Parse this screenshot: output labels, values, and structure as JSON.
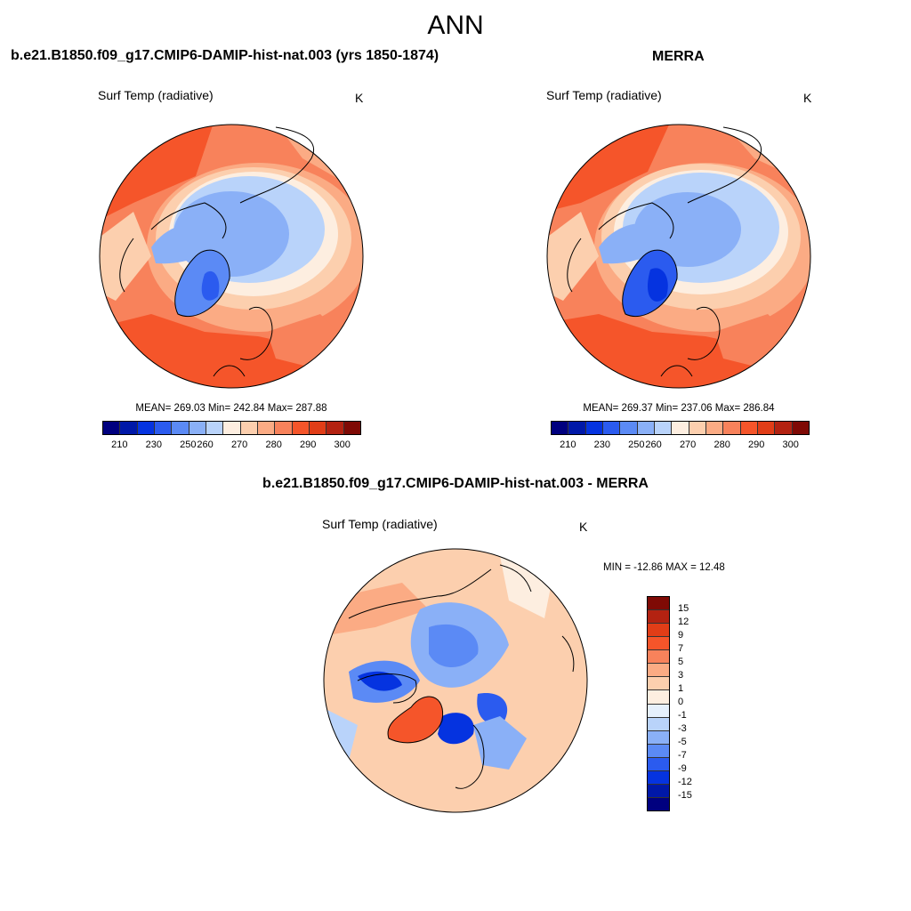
{
  "figure": {
    "title": "ANN"
  },
  "panels": [
    {
      "title": "b.e21.B1850.f09_g17.CMIP6-DAMIP-hist-nat.003 (yrs 1850-1874)",
      "variable": "Surf Temp (radiative)",
      "units": "K",
      "stats": "MEAN= 269.03  Min= 242.84  Max= 287.88"
    },
    {
      "title": "MERRA",
      "variable": "Surf Temp (radiative)",
      "units": "K",
      "stats": "MEAN= 269.37  Min= 237.06  Max= 286.84"
    },
    {
      "title": "b.e21.B1850.f09_g17.CMIP6-DAMIP-hist-nat.003 - MERRA",
      "variable": "Surf Temp (radiative)",
      "units": "K",
      "stats": "MIN = -12.86 MAX =  12.48"
    }
  ],
  "colorbar_abs": {
    "tick_labels": [
      "210",
      "230",
      "250",
      "260",
      "270",
      "280",
      "290",
      "300"
    ],
    "colors": [
      "#00007f",
      "#0018a8",
      "#0533e0",
      "#2b5bef",
      "#5b8af5",
      "#8ab0f7",
      "#b9d3fa",
      "#fdeee0",
      "#fccfae",
      "#fbab84",
      "#f8825b",
      "#f5552a",
      "#e13d17",
      "#b32211",
      "#7f0a05"
    ]
  },
  "colorbar_diff": {
    "tick_labels": [
      "15",
      "12",
      "9",
      "7",
      "5",
      "3",
      "1",
      "0",
      "-1",
      "-3",
      "-5",
      "-7",
      "-9",
      "-12",
      "-15"
    ],
    "colors": [
      "#7f0a05",
      "#b32211",
      "#e13d17",
      "#f5552a",
      "#f8825b",
      "#fbab84",
      "#fccfae",
      "#fdeee0",
      "#e6f0fc",
      "#b9d3fa",
      "#8ab0f7",
      "#5b8af5",
      "#2b5bef",
      "#0533e0",
      "#0018a8",
      "#00007f"
    ]
  }
}
